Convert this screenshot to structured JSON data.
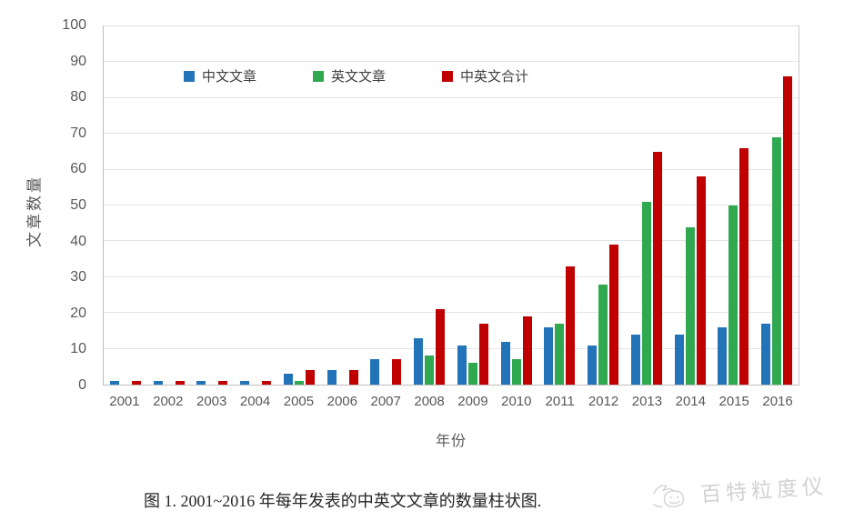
{
  "figure": {
    "caption": "图 1. 2001~2016 年每年发表的中英文文章的数量柱状图.",
    "watermark_text": "百特粒度仪",
    "watermark_logo_icon": "bird-sketch-icon",
    "background_color": "#ffffff",
    "text_color": "#595959"
  },
  "chart_data": {
    "type": "bar",
    "title": "",
    "xlabel": "年份",
    "ylabel": "文章数量",
    "ylim": [
      0,
      100
    ],
    "ytick_step": 10,
    "grid": true,
    "legend_position": "top-inside-horizontal",
    "categories": [
      "2001",
      "2002",
      "2003",
      "2004",
      "2005",
      "2006",
      "2007",
      "2008",
      "2009",
      "2010",
      "2011",
      "2012",
      "2013",
      "2014",
      "2015",
      "2016"
    ],
    "series": [
      {
        "name": "中文文章",
        "color": "#2373B9",
        "values": [
          1,
          1,
          1,
          1,
          3,
          4,
          7,
          13,
          11,
          12,
          16,
          11,
          14,
          14,
          16,
          17
        ]
      },
      {
        "name": "英文文章",
        "color": "#2FA84F",
        "values": [
          0,
          0,
          0,
          0,
          1,
          0,
          0,
          8,
          6,
          7,
          17,
          28,
          51,
          44,
          50,
          69
        ]
      },
      {
        "name": "中英文合计",
        "color": "#C00000",
        "values": [
          1,
          1,
          1,
          1,
          4,
          4,
          7,
          21,
          17,
          19,
          33,
          39,
          65,
          58,
          66,
          86
        ]
      }
    ]
  }
}
